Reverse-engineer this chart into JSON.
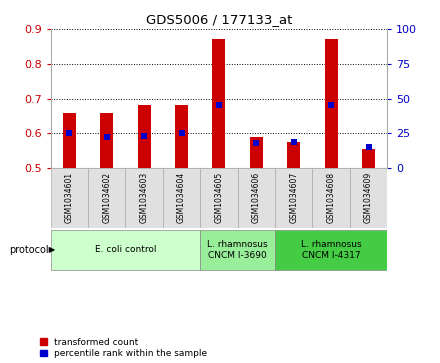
{
  "title": "GDS5006 / 177133_at",
  "samples": [
    "GSM1034601",
    "GSM1034602",
    "GSM1034603",
    "GSM1034604",
    "GSM1034605",
    "GSM1034606",
    "GSM1034607",
    "GSM1034608",
    "GSM1034609"
  ],
  "transformed_count": [
    0.657,
    0.659,
    0.682,
    0.682,
    0.872,
    0.59,
    0.575,
    0.87,
    0.555
  ],
  "percentile_rank": [
    25,
    22,
    23,
    25,
    45,
    18,
    19,
    45,
    15
  ],
  "ylim_left": [
    0.5,
    0.9
  ],
  "ylim_right": [
    0,
    100
  ],
  "yticks_left": [
    0.5,
    0.6,
    0.7,
    0.8,
    0.9
  ],
  "yticks_right": [
    0,
    25,
    50,
    75,
    100
  ],
  "bar_color": "#cc0000",
  "marker_color": "#0000cc",
  "group_boundaries": [
    {
      "start": 0,
      "end": 3,
      "label": "E. coli control",
      "color": "#ccffcc"
    },
    {
      "start": 4,
      "end": 5,
      "label": "L. rhamnosus\nCNCM I-3690",
      "color": "#99ee99"
    },
    {
      "start": 6,
      "end": 8,
      "label": "L. rhamnosus\nCNCM I-4317",
      "color": "#44cc44"
    }
  ],
  "legend_labels": [
    "transformed count",
    "percentile rank within the sample"
  ],
  "legend_colors": [
    "#cc0000",
    "#0000cc"
  ],
  "bar_width": 0.35,
  "baseline": 0.5,
  "xtick_bg": "#dddddd",
  "ylabel_left_color": "#cc0000",
  "ylabel_right_color": "#0000cc"
}
